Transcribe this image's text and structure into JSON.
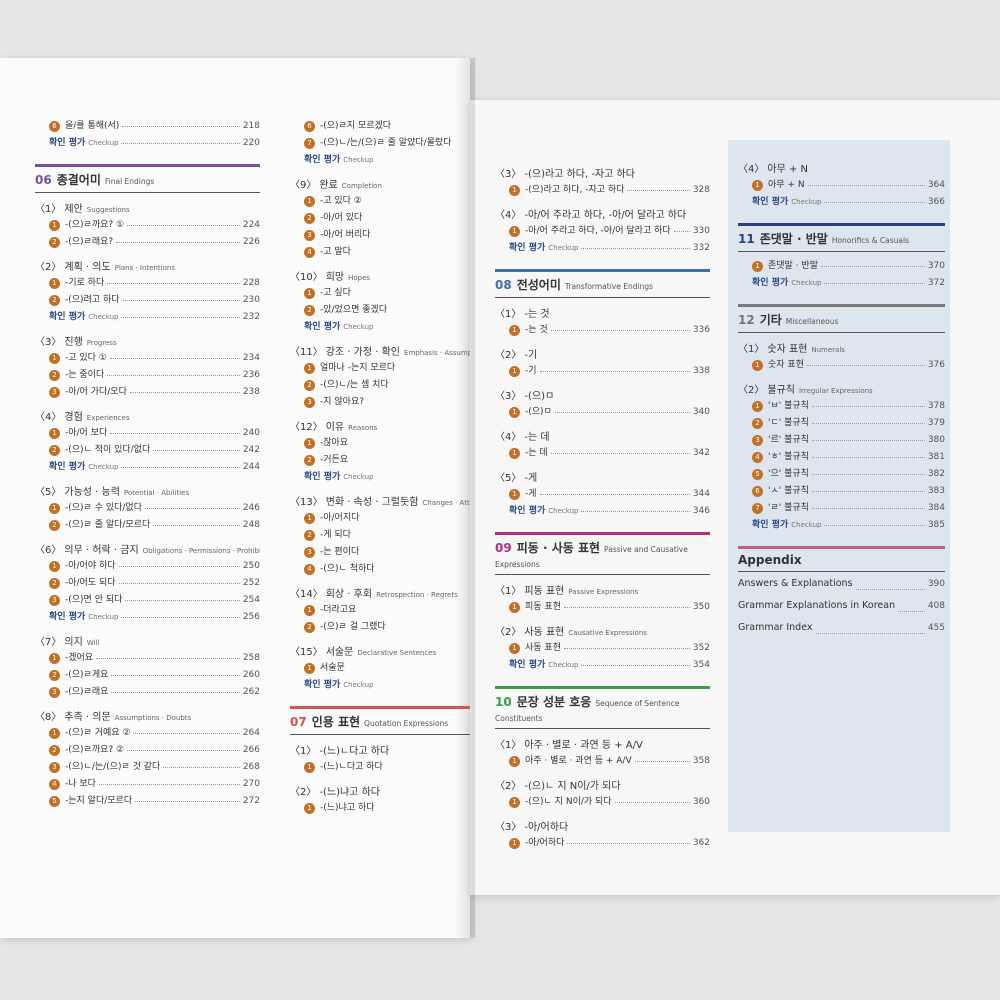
{
  "columns": [
    {
      "entries": [
        {
          "kind": "item",
          "n": "6",
          "text": "을/를 통해(서)",
          "page": 218
        },
        {
          "kind": "check",
          "label": "확인 평가",
          "en": "Checkup",
          "page": 220
        },
        {
          "kind": "section",
          "num": "06",
          "title": "종결어미",
          "en": "Final Endings",
          "color": "#7b4fa0"
        },
        {
          "kind": "group",
          "n": "1",
          "title": "제안",
          "en": "Suggestions"
        },
        {
          "kind": "item",
          "n": "1",
          "text": "-(으)ㄹ까요? ①",
          "page": 224
        },
        {
          "kind": "item",
          "n": "2",
          "text": "-(으)ㄹ래요?",
          "page": 226
        },
        {
          "kind": "group",
          "n": "2",
          "title": "계획 · 의도",
          "en": "Plans · Intentions"
        },
        {
          "kind": "item",
          "n": "1",
          "text": "-기로 하다",
          "page": 228
        },
        {
          "kind": "item",
          "n": "2",
          "text": "-(으)려고 하다",
          "page": 230
        },
        {
          "kind": "check",
          "label": "확인 평가",
          "en": "Checkup",
          "page": 232
        },
        {
          "kind": "group",
          "n": "3",
          "title": "진행",
          "en": "Progress"
        },
        {
          "kind": "item",
          "n": "1",
          "text": "-고 있다 ①",
          "page": 234
        },
        {
          "kind": "item",
          "n": "2",
          "text": "-는 중이다",
          "page": 236
        },
        {
          "kind": "item",
          "n": "3",
          "text": "-아/어 가다/오다",
          "page": 238
        },
        {
          "kind": "group",
          "n": "4",
          "title": "경험",
          "en": "Experiences"
        },
        {
          "kind": "item",
          "n": "1",
          "text": "-아/어 보다",
          "page": 240
        },
        {
          "kind": "item",
          "n": "2",
          "text": "-(으)ㄴ 적이 있다/없다",
          "page": 242
        },
        {
          "kind": "check",
          "label": "확인 평가",
          "en": "Checkup",
          "page": 244
        },
        {
          "kind": "group",
          "n": "5",
          "title": "가능성 · 능력",
          "en": "Potential · Abilities"
        },
        {
          "kind": "item",
          "n": "1",
          "text": "-(으)ㄹ 수 있다/없다",
          "page": 246
        },
        {
          "kind": "item",
          "n": "2",
          "text": "-(으)ㄹ 줄 알다/모르다",
          "page": 248
        },
        {
          "kind": "group",
          "n": "6",
          "title": "의무 · 허락 · 금지",
          "en": "Obligations · Permissions · Prohibitions"
        },
        {
          "kind": "item",
          "n": "1",
          "text": "-아/어야 하다",
          "page": 250
        },
        {
          "kind": "item",
          "n": "2",
          "text": "-아/어도 되다",
          "page": 252
        },
        {
          "kind": "item",
          "n": "3",
          "text": "-(으)면 안 되다",
          "page": 254
        },
        {
          "kind": "check",
          "label": "확인 평가",
          "en": "Checkup",
          "page": 256
        },
        {
          "kind": "group",
          "n": "7",
          "title": "의지",
          "en": "Will"
        },
        {
          "kind": "item",
          "n": "1",
          "text": "-겠어요",
          "page": 258
        },
        {
          "kind": "item",
          "n": "2",
          "text": "-(으)ㄹ게요",
          "page": 260
        },
        {
          "kind": "item",
          "n": "3",
          "text": "-(으)ㄹ래요",
          "page": 262
        },
        {
          "kind": "group",
          "n": "8",
          "title": "추측 · 의문",
          "en": "Assumptions · Doubts"
        },
        {
          "kind": "item",
          "n": "1",
          "text": "-(으)ㄹ 거예요 ②",
          "page": 264
        },
        {
          "kind": "item",
          "n": "2",
          "text": "-(으)ㄹ까요? ②",
          "page": 266
        },
        {
          "kind": "item",
          "n": "3",
          "text": "-(으)ㄴ/는/(으)ㄹ 것 같다",
          "page": 268
        },
        {
          "kind": "item",
          "n": "4",
          "text": "-나 보다",
          "page": 270
        },
        {
          "kind": "item",
          "n": "5",
          "text": "-는지 알다/모르다",
          "page": 272
        }
      ]
    },
    {
      "entries": [
        {
          "kind": "item",
          "n": "6",
          "text": "-(으)ㄹ지 모르겠다"
        },
        {
          "kind": "item",
          "n": "7",
          "text": "-(으)ㄴ/는/(으)ㄹ 줄 알았다/몰랐다"
        },
        {
          "kind": "check",
          "label": "확인 평가",
          "en": "Checkup"
        },
        {
          "kind": "group",
          "n": "9",
          "title": "완료",
          "en": "Completion"
        },
        {
          "kind": "item",
          "n": "1",
          "text": "-고 있다 ②"
        },
        {
          "kind": "item",
          "n": "2",
          "text": "-아/어 있다"
        },
        {
          "kind": "item",
          "n": "3",
          "text": "-아/어 버리다"
        },
        {
          "kind": "item",
          "n": "4",
          "text": "-고 말다"
        },
        {
          "kind": "group",
          "n": "10",
          "title": "희망",
          "en": "Hopes"
        },
        {
          "kind": "item",
          "n": "1",
          "text": "-고 싶다"
        },
        {
          "kind": "item",
          "n": "2",
          "text": "-았/었으면 좋겠다"
        },
        {
          "kind": "check",
          "label": "확인 평가",
          "en": "Checkup"
        },
        {
          "kind": "group",
          "n": "11",
          "title": "강조 · 가정 · 확인",
          "en": "Emphasis · Assumptions · Confir"
        },
        {
          "kind": "item",
          "n": "1",
          "text": "얼마나 -는지 모르다"
        },
        {
          "kind": "item",
          "n": "2",
          "text": "-(으)ㄴ/는 셈 치다"
        },
        {
          "kind": "item",
          "n": "3",
          "text": "-지 않아요?"
        },
        {
          "kind": "group",
          "n": "12",
          "title": "이유",
          "en": "Reasons"
        },
        {
          "kind": "item",
          "n": "1",
          "text": "-잖아요"
        },
        {
          "kind": "item",
          "n": "2",
          "text": "-거든요"
        },
        {
          "kind": "check",
          "label": "확인 평가",
          "en": "Checkup"
        },
        {
          "kind": "group",
          "n": "13",
          "title": "변화 · 속성 · 그럴듯함",
          "en": "Changes · Attributes · Plau"
        },
        {
          "kind": "item",
          "n": "1",
          "text": "-아/어지다"
        },
        {
          "kind": "item",
          "n": "2",
          "text": "-게 되다"
        },
        {
          "kind": "item",
          "n": "3",
          "text": "-는 편이다"
        },
        {
          "kind": "item",
          "n": "4",
          "text": "-(으)ㄴ 척하다"
        },
        {
          "kind": "group",
          "n": "14",
          "title": "회상 · 후회",
          "en": "Retrospection · Regrets"
        },
        {
          "kind": "item",
          "n": "1",
          "text": "-더라고요"
        },
        {
          "kind": "item",
          "n": "2",
          "text": "-(으)ㄹ 걸 그랬다"
        },
        {
          "kind": "group",
          "n": "15",
          "title": "서술문",
          "en": "Declarative Sentences"
        },
        {
          "kind": "item",
          "n": "1",
          "text": "서술문"
        },
        {
          "kind": "check",
          "label": "확인 평가",
          "en": "Checkup"
        },
        {
          "kind": "section",
          "num": "07",
          "title": "인용 표현",
          "en": "Quotation Expressions",
          "color": "#d9534f"
        },
        {
          "kind": "group",
          "n": "1",
          "title": "-(느)ㄴ다고 하다"
        },
        {
          "kind": "item",
          "n": "1",
          "text": "-(느)ㄴ다고 하다"
        },
        {
          "kind": "group",
          "n": "2",
          "title": "-(느)냐고 하다"
        },
        {
          "kind": "item",
          "n": "1",
          "text": "-(느)냐고 하다"
        }
      ]
    },
    {
      "entries": [
        {
          "kind": "group",
          "n": "3",
          "title": "-(으)라고 하다, -자고 하다"
        },
        {
          "kind": "item",
          "n": "1",
          "text": "-(으)라고 하다, -자고 하다",
          "page": 328
        },
        {
          "kind": "group",
          "n": "4",
          "title": "-아/어 주라고 하다, -아/어 달라고 하다"
        },
        {
          "kind": "item",
          "n": "1",
          "text": "-아/어 주라고 하다, -아/어 달라고 하다",
          "page": 330
        },
        {
          "kind": "check",
          "label": "확인 평가",
          "en": "Checkup",
          "page": 332
        },
        {
          "kind": "section",
          "num": "08",
          "title": "전성어미",
          "en": "Transformative Endings",
          "color": "#3a6fb0"
        },
        {
          "kind": "group",
          "n": "1",
          "title": "-는 것"
        },
        {
          "kind": "item",
          "n": "1",
          "text": "-는 것",
          "page": 336
        },
        {
          "kind": "group",
          "n": "2",
          "title": "-기"
        },
        {
          "kind": "item",
          "n": "1",
          "text": "-기",
          "page": 338
        },
        {
          "kind": "group",
          "n": "3",
          "title": "-(으)ㅁ"
        },
        {
          "kind": "item",
          "n": "1",
          "text": "-(으)ㅁ",
          "page": 340
        },
        {
          "kind": "group",
          "n": "4",
          "title": "-는 데"
        },
        {
          "kind": "item",
          "n": "1",
          "text": "-는 데",
          "page": 342
        },
        {
          "kind": "group",
          "n": "5",
          "title": "-게"
        },
        {
          "kind": "item",
          "n": "1",
          "text": "-게",
          "page": 344
        },
        {
          "kind": "check",
          "label": "확인 평가",
          "en": "Checkup",
          "page": 346
        },
        {
          "kind": "section",
          "num": "09",
          "title": "피동 · 사동 표현",
          "en": "Passive and Causative Expressions",
          "color": "#b0307a"
        },
        {
          "kind": "group",
          "n": "1",
          "title": "피동 표현",
          "en": "Passive Expressions"
        },
        {
          "kind": "item",
          "n": "1",
          "text": "피동 표현",
          "page": 350
        },
        {
          "kind": "group",
          "n": "2",
          "title": "사동 표현",
          "en": "Causative Expressions"
        },
        {
          "kind": "item",
          "n": "1",
          "text": "사동 표현",
          "page": 352
        },
        {
          "kind": "check",
          "label": "확인 평가",
          "en": "Checkup",
          "page": 354
        },
        {
          "kind": "section",
          "num": "10",
          "title": "문장 성분 호응",
          "en": "Sequence of Sentence Constituents",
          "color": "#3aa04a"
        },
        {
          "kind": "group",
          "n": "1",
          "title": "아주 · 별로 · 과연 등 + A/V"
        },
        {
          "kind": "item",
          "n": "1",
          "text": "아주 · 별로 · 과연 등 + A/V",
          "page": 358
        },
        {
          "kind": "group",
          "n": "2",
          "title": "-(으)ㄴ 지 N이/가 되다"
        },
        {
          "kind": "item",
          "n": "1",
          "text": "-(으)ㄴ 지 N이/가 되다",
          "page": 360
        },
        {
          "kind": "group",
          "n": "3",
          "title": "-아/어하다"
        },
        {
          "kind": "item",
          "n": "1",
          "text": "-아/어하다",
          "page": 362
        }
      ]
    },
    {
      "entries": [
        {
          "kind": "group",
          "n": "4",
          "title": "아무 + N"
        },
        {
          "kind": "item",
          "n": "1",
          "text": "아무 + N",
          "page": 364
        },
        {
          "kind": "check",
          "label": "확인 평가",
          "en": "Checkup",
          "page": 366
        },
        {
          "kind": "section",
          "num": "11",
          "title": "존댓말 · 반말",
          "en": "Honorifics & Casuals",
          "color": "#2b3f80"
        },
        {
          "kind": "item",
          "n": "1",
          "text": "존댓말 · 반말",
          "page": 370
        },
        {
          "kind": "check",
          "label": "확인 평가",
          "en": "Checkup",
          "page": 372
        },
        {
          "kind": "section",
          "num": "12",
          "title": "기타",
          "en": "Miscellaneous",
          "color": "#777777"
        },
        {
          "kind": "group",
          "n": "1",
          "title": "숫자 표현",
          "en": "Numerals"
        },
        {
          "kind": "item",
          "n": "1",
          "text": "숫자 표현",
          "page": 376
        },
        {
          "kind": "group",
          "n": "2",
          "title": "불규칙",
          "en": "Irregular Expressions"
        },
        {
          "kind": "item",
          "n": "1",
          "text": "'ㅂ' 불규칙",
          "page": 378
        },
        {
          "kind": "item",
          "n": "2",
          "text": "'ㄷ' 불규칙",
          "page": 379
        },
        {
          "kind": "item",
          "n": "3",
          "text": "'르' 불규칙",
          "page": 380
        },
        {
          "kind": "item",
          "n": "4",
          "text": "'ㅎ' 불규칙",
          "page": 381
        },
        {
          "kind": "item",
          "n": "5",
          "text": "'으' 불규칙",
          "page": 382
        },
        {
          "kind": "item",
          "n": "6",
          "text": "'ㅅ' 불규칙",
          "page": 383
        },
        {
          "kind": "item",
          "n": "7",
          "text": "'ㄹ' 불규칙",
          "page": 384
        },
        {
          "kind": "check",
          "label": "확인 평가",
          "en": "Checkup",
          "page": 385
        },
        {
          "kind": "section",
          "title": "Appendix",
          "color": "#c06080"
        },
        {
          "kind": "entry",
          "text": "Answers & Explanations",
          "page": 390
        },
        {
          "kind": "entry",
          "text": "Grammar Explanations in Korean",
          "page": 408
        },
        {
          "kind": "entry",
          "text": "Grammar Index",
          "page": 455
        }
      ]
    }
  ]
}
